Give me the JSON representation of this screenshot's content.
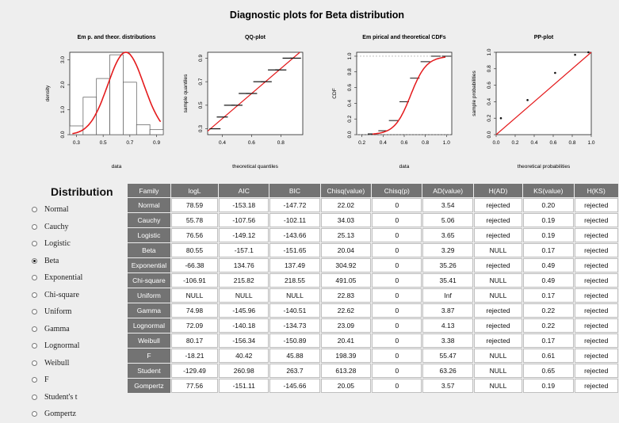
{
  "main_title": "Diagnostic plots for Beta distribution",
  "plots": [
    {
      "title": "Em p. and theor. distributions",
      "xlabel": "data",
      "ylabel": "density",
      "xticks": [
        "0.3",
        "0.5",
        "0.7",
        "0.9"
      ],
      "yticks": [
        "0.0",
        "1.0",
        "2.0",
        "3.0"
      ]
    },
    {
      "title": "QQ-plot",
      "xlabel": "theoretical quantiles",
      "ylabel": "sample quantiles",
      "xticks": [
        "0.4",
        "0.6",
        "0.8"
      ],
      "yticks": [
        "0.3",
        "0.5",
        "0.7",
        "0.9"
      ]
    },
    {
      "title": "Em pirical and theoretical CDFs",
      "xlabel": "data",
      "ylabel": "CDF",
      "xticks": [
        "0.2",
        "0.4",
        "0.6",
        "0.8",
        "1.0"
      ],
      "yticks": [
        "0.0",
        "0.2",
        "0.4",
        "0.6",
        "0.8",
        "1.0"
      ]
    },
    {
      "title": "PP-plot",
      "xlabel": "theoretical probabilities",
      "ylabel": "sample probabilities",
      "xticks": [
        "0.0",
        "0.2",
        "0.4",
        "0.6",
        "0.8",
        "1.0"
      ],
      "yticks": [
        "0.0",
        "0.2",
        "0.4",
        "0.6",
        "0.8",
        "1.0"
      ]
    }
  ],
  "chart_data": [
    {
      "type": "bar",
      "title": "Em p. and theor. distributions",
      "xlabel": "data",
      "ylabel": "density",
      "xlim": [
        0.25,
        0.95
      ],
      "ylim": [
        0,
        3.3
      ],
      "categories": [
        "0.3",
        "0.4",
        "0.5",
        "0.6",
        "0.7",
        "0.8",
        "0.9"
      ],
      "values": [
        0.35,
        1.5,
        2.25,
        3.2,
        2.1,
        0.4,
        0.2
      ],
      "series": [
        {
          "values": [
            0.35,
            1.5,
            2.25,
            3.2,
            2.1,
            0.4,
            0.2
          ]
        }
      ]
    },
    {
      "type": "scatter",
      "title": "QQ-plot",
      "xlabel": "theoretical quantiles",
      "ylabel": "sample quantiles",
      "xlim": [
        0.3,
        0.95
      ],
      "ylim": [
        0.25,
        0.95
      ],
      "x": [
        0.35,
        0.4,
        0.45,
        0.5,
        0.55,
        0.6,
        0.65,
        0.7,
        0.75,
        0.8,
        0.85,
        0.9
      ],
      "y": [
        0.3,
        0.4,
        0.5,
        0.5,
        0.6,
        0.6,
        0.7,
        0.7,
        0.8,
        0.8,
        0.9,
        0.9
      ]
    },
    {
      "type": "line",
      "title": "Em pirical and theoretical CDFs",
      "xlabel": "data",
      "ylabel": "CDF",
      "xlim": [
        0.15,
        1.05
      ],
      "ylim": [
        0,
        1.05
      ],
      "x": [
        0.3,
        0.4,
        0.5,
        0.6,
        0.7,
        0.8,
        0.9,
        1.0
      ],
      "y": [
        0.01,
        0.05,
        0.18,
        0.42,
        0.72,
        0.93,
        1.0,
        1.0
      ]
    },
    {
      "type": "scatter",
      "title": "PP-plot",
      "xlabel": "theoretical probabilities",
      "ylabel": "sample probabilities",
      "xlim": [
        0,
        1
      ],
      "ylim": [
        0,
        1
      ],
      "x": [
        0.05,
        0.33,
        0.62,
        0.83,
        0.97
      ],
      "y": [
        0.2,
        0.42,
        0.75,
        0.97,
        1.0
      ]
    }
  ],
  "distribution_panel": {
    "title": "Distribution",
    "selected": "Beta",
    "options": [
      "Normal",
      "Cauchy",
      "Logistic",
      "Beta",
      "Exponential",
      "Chi-square",
      "Uniform",
      "Gamma",
      "Lognormal",
      "Weibull",
      "F",
      "Student's t",
      "Gompertz"
    ]
  },
  "table": {
    "headers": [
      "Family",
      "logL",
      "AIC",
      "BIC",
      "Chisq(value)",
      "Chisq(p)",
      "AD(value)",
      "H(AD)",
      "KS(value)",
      "H(KS)"
    ],
    "rows": [
      [
        "Normal",
        "78.59",
        "-153.18",
        "-147.72",
        "22.02",
        "0",
        "3.54",
        "rejected",
        "0.20",
        "rejected"
      ],
      [
        "Cauchy",
        "55.78",
        "-107.56",
        "-102.11",
        "34.03",
        "0",
        "5.06",
        "rejected",
        "0.19",
        "rejected"
      ],
      [
        "Logistic",
        "76.56",
        "-149.12",
        "-143.66",
        "25.13",
        "0",
        "3.65",
        "rejected",
        "0.19",
        "rejected"
      ],
      [
        "Beta",
        "80.55",
        "-157.1",
        "-151.65",
        "20.04",
        "0",
        "3.29",
        "NULL",
        "0.17",
        "rejected"
      ],
      [
        "Exponential",
        "-66.38",
        "134.76",
        "137.49",
        "304.92",
        "0",
        "35.26",
        "rejected",
        "0.49",
        "rejected"
      ],
      [
        "Chi-square",
        "-106.91",
        "215.82",
        "218.55",
        "491.05",
        "0",
        "35.41",
        "NULL",
        "0.49",
        "rejected"
      ],
      [
        "Uniform",
        "NULL",
        "NULL",
        "NULL",
        "22.83",
        "0",
        "Inf",
        "NULL",
        "0.17",
        "rejected"
      ],
      [
        "Gamma",
        "74.98",
        "-145.96",
        "-140.51",
        "22.62",
        "0",
        "3.87",
        "rejected",
        "0.22",
        "rejected"
      ],
      [
        "Lognormal",
        "72.09",
        "-140.18",
        "-134.73",
        "23.09",
        "0",
        "4.13",
        "rejected",
        "0.22",
        "rejected"
      ],
      [
        "Weibull",
        "80.17",
        "-156.34",
        "-150.89",
        "20.41",
        "0",
        "3.38",
        "rejected",
        "0.17",
        "rejected"
      ],
      [
        "F",
        "-18.21",
        "40.42",
        "45.88",
        "198.39",
        "0",
        "55.47",
        "NULL",
        "0.61",
        "rejected"
      ],
      [
        "Student",
        "-129.49",
        "260.98",
        "263.7",
        "613.28",
        "0",
        "63.26",
        "NULL",
        "0.65",
        "rejected"
      ],
      [
        "Gompertz",
        "77.56",
        "-151.11",
        "-145.66",
        "20.05",
        "0",
        "3.57",
        "NULL",
        "0.19",
        "rejected"
      ]
    ]
  },
  "colors": {
    "curve": "#e41a1c",
    "header_bg": "#737373",
    "background": "#eeeeee"
  }
}
